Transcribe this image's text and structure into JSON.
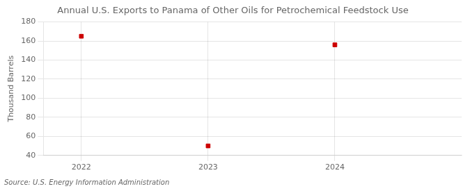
{
  "chart_data": {
    "type": "scatter",
    "title": "Annual U.S. Exports to Panama of Other Oils for Petrochemical Feedstock Use",
    "ylabel": "Thousand Barrels",
    "source": "Source: U.S. Energy Information Administration",
    "x": [
      2022,
      2023,
      2024
    ],
    "values": [
      165,
      50,
      156
    ],
    "color": "#cc0000",
    "marker": "square",
    "xlim": [
      2021.7,
      2025.0
    ],
    "xticks": [
      2022,
      2023,
      2024
    ],
    "ylim": [
      40,
      180
    ],
    "yticks": [
      40,
      60,
      80,
      100,
      120,
      140,
      160,
      180
    ],
    "grid": true
  }
}
